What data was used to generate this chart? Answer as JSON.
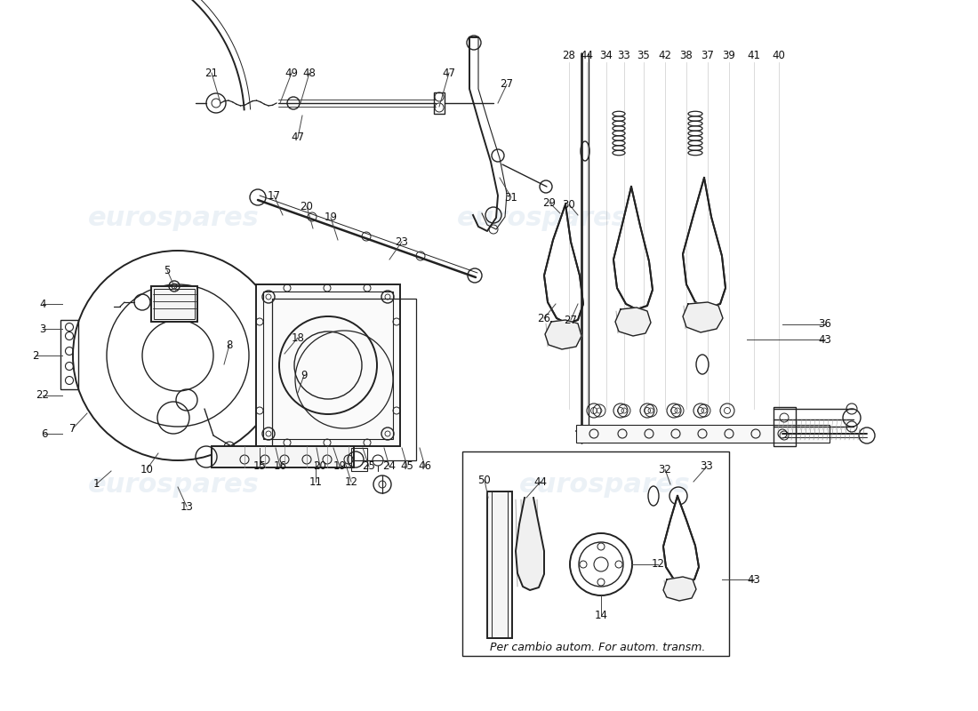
{
  "background_color": "#ffffff",
  "line_color": "#222222",
  "watermark_color": "#c8d8e8",
  "watermark_text": "eurospares",
  "watermark_opacity": 0.35,
  "bottom_note": "Per cambio autom. For autom. transm."
}
